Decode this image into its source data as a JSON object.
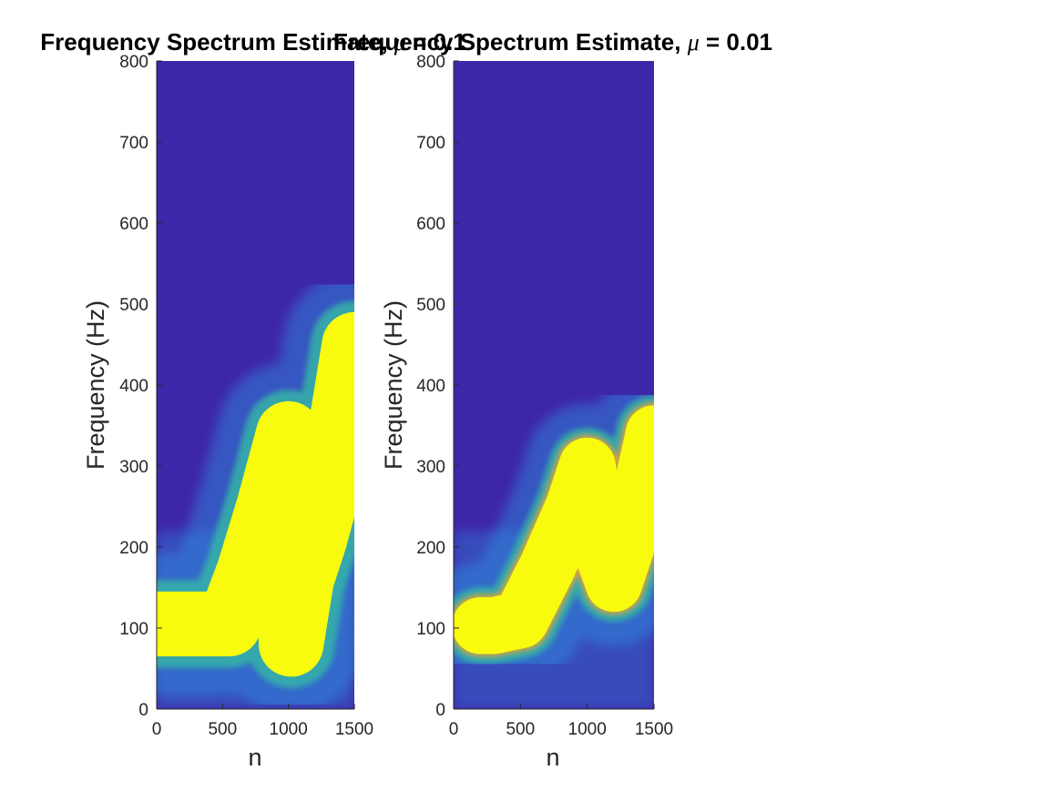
{
  "colors": {
    "background_low": "#3e26a8",
    "mid": "#2f91e0",
    "teal": "#36b8a6",
    "orange": "#e0a33a",
    "peak": "#f9fb0e"
  },
  "chart_data": [
    {
      "type": "heatmap",
      "title": "Frequency Spectrum Estimate, μ = 0.1",
      "title_prefix": "Frequency Spectrum Estimate, ",
      "title_mu": "μ",
      "title_suffix": " = 0.1",
      "xlabel": "n",
      "ylabel": "Frequency (Hz)",
      "xlim": [
        0,
        1500
      ],
      "ylim": [
        0,
        800
      ],
      "xticks": [
        "0",
        "500",
        "1000",
        "1500"
      ],
      "yticks": [
        "0",
        "100",
        "200",
        "300",
        "400",
        "500",
        "600",
        "700",
        "800"
      ],
      "colormap": "parula",
      "ridge": {
        "n": [
          0,
          250,
          550,
          700,
          850,
          1000,
          1020,
          1100,
          1200,
          1300,
          1400,
          1500
        ],
        "freq_hz": [
          105,
          105,
          105,
          170,
          250,
          340,
          80,
          160,
          210,
          270,
          350,
          450
        ]
      },
      "ridge_halfwidth_hz": 40
    },
    {
      "type": "heatmap",
      "title": "Frequency Spectrum Estimate, μ = 0.01",
      "title_prefix": "Frequency Spectrum Estimate, ",
      "title_mu": "μ",
      "title_suffix": " = 0.01",
      "xlabel": "n",
      "ylabel": "Frequency (Hz)",
      "xlim": [
        0,
        1500
      ],
      "ylim": [
        0,
        800
      ],
      "xticks": [
        "0",
        "500",
        "1000",
        "1500"
      ],
      "yticks": [
        "0",
        "100",
        "200",
        "300",
        "400",
        "500",
        "600",
        "700",
        "800"
      ],
      "colormap": "parula",
      "ridge": {
        "n": [
          200,
          300,
          500,
          700,
          900,
          1000,
          1100,
          1200,
          1300,
          1400,
          1500
        ],
        "freq_hz": [
          103,
          103,
          110,
          175,
          250,
          300,
          200,
          155,
          205,
          265,
          340
        ]
      },
      "ridge_halfwidth_hz": 35
    }
  ]
}
